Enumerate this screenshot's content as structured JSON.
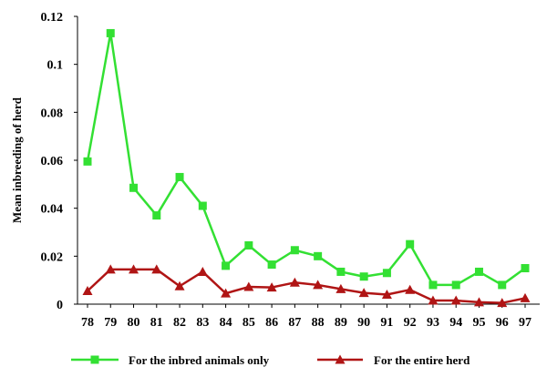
{
  "chart_data": {
    "type": "line",
    "title": "",
    "xlabel": "",
    "ylabel": "Mean inbreeding of herd",
    "ylim": [
      0,
      0.12
    ],
    "yticks": [
      "0",
      "0.02",
      "0.04",
      "0.06",
      "0.08",
      "0.1",
      "0.12"
    ],
    "grid": false,
    "legend_position": "bottom",
    "categories": [
      "78",
      "79",
      "80",
      "81",
      "82",
      "83",
      "84",
      "85",
      "86",
      "87",
      "88",
      "89",
      "90",
      "91",
      "92",
      "93",
      "94",
      "95",
      "96",
      "97"
    ],
    "series": [
      {
        "name": "For the inbred animals only",
        "color": "#33e033",
        "marker": "square",
        "values": [
          0.0595,
          0.113,
          0.0485,
          0.037,
          0.053,
          0.041,
          0.016,
          0.0245,
          0.0165,
          0.0225,
          0.02,
          0.0135,
          0.0115,
          0.013,
          0.025,
          0.008,
          0.008,
          0.0135,
          0.008,
          0.015
        ]
      },
      {
        "name": "For the entire herd",
        "color": "#b01515",
        "marker": "triangle",
        "values": [
          0.0055,
          0.0145,
          0.0145,
          0.0145,
          0.0075,
          0.0135,
          0.0045,
          0.0072,
          0.007,
          0.009,
          0.008,
          0.0063,
          0.0047,
          0.004,
          0.006,
          0.0015,
          0.0015,
          0.0008,
          0.0005,
          0.0025
        ]
      }
    ]
  }
}
